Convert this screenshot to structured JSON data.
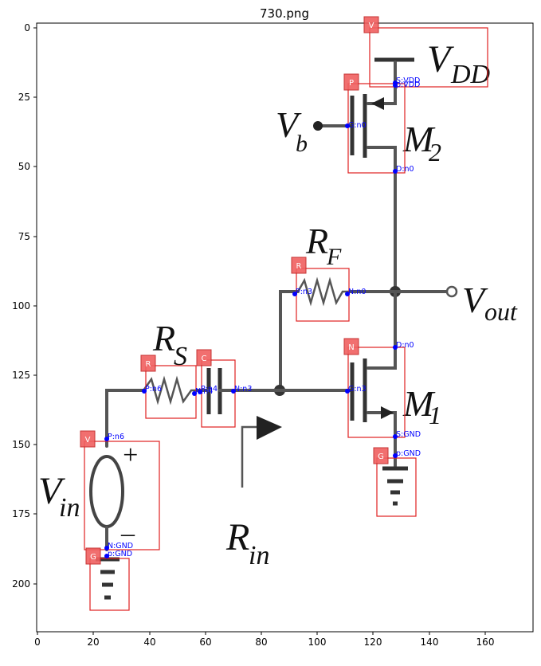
{
  "title": "730.png",
  "axes": {
    "x_ticks": [
      "0",
      "20",
      "40",
      "60",
      "80",
      "100",
      "120",
      "140",
      "160"
    ],
    "y_ticks": [
      "0",
      "25",
      "50",
      "75",
      "100",
      "125",
      "150",
      "175",
      "200"
    ]
  },
  "handwriting": {
    "vdd": "V",
    "vdd_sub": "DD",
    "vb": "V",
    "vb_sub": "b",
    "m2": "M",
    "m2_sub": "2",
    "rf": "R",
    "rf_sub": "F",
    "vout": "V",
    "vout_sub": "out",
    "rs": "R",
    "rs_sub": "S",
    "m1": "M",
    "m1_sub": "1",
    "vin": "V",
    "vin_sub": "in",
    "rin": "R",
    "rin_sub": "in",
    "plus": "+",
    "minus": "–"
  },
  "detections": [
    {
      "tag": "V"
    },
    {
      "tag": "P"
    },
    {
      "tag": "R"
    },
    {
      "tag": "N"
    },
    {
      "tag": "R"
    },
    {
      "tag": "C"
    },
    {
      "tag": "V"
    },
    {
      "tag": "G"
    },
    {
      "tag": "G"
    }
  ],
  "pins": [
    {
      "label": "S:VDD"
    },
    {
      "label": "p:VDD"
    },
    {
      "label": "G:n0"
    },
    {
      "label": "D:n0"
    },
    {
      "label": "P:n3"
    },
    {
      "label": "N:n0"
    },
    {
      "label": "D:n0"
    },
    {
      "label": "P:n6"
    },
    {
      "label": "N:n4"
    },
    {
      "label": "P:n4"
    },
    {
      "label": "N:n3"
    },
    {
      "label": "G:n3"
    },
    {
      "label": "S:GND"
    },
    {
      "label": "p:GND"
    },
    {
      "label": "P:n6"
    },
    {
      "label": "N:GND"
    },
    {
      "label": "p:GND"
    }
  ]
}
